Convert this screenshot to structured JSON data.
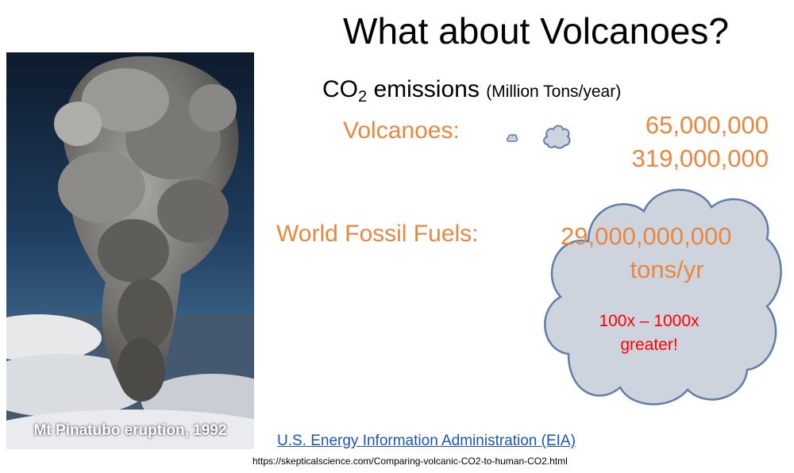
{
  "slide": {
    "title": "What about Volcanoes?",
    "co2_label_prefix": "CO",
    "co2_label_subscript": "2",
    "co2_label_suffix": " emissions",
    "units": "(Million Tons/year)",
    "volcanoes_label": "Volcanoes:",
    "volcanoes_low": "65,000,000",
    "volcanoes_high": "319,000,000",
    "fossil_label": "World Fossil Fuels:",
    "fossil_value": "29,000,000,000",
    "fossil_units": "tons/yr",
    "comparison_line1": "100x – 1000x",
    "comparison_line2": "greater!",
    "source_link": "U.S. Energy Information Administration (EIA)",
    "source_url": "https://skepticalscience.com/Comparing-volcanic-CO2-to-human-CO2.html"
  },
  "photo": {
    "caption": "Mt Pinatubo eruption, 1992"
  },
  "colors": {
    "accent_orange": "#e8873f",
    "highlight_red": "#ff0000",
    "link_blue": "#1a56b8",
    "cloud_fill": "#ced4dd",
    "cloud_stroke": "#5f7ea8"
  }
}
